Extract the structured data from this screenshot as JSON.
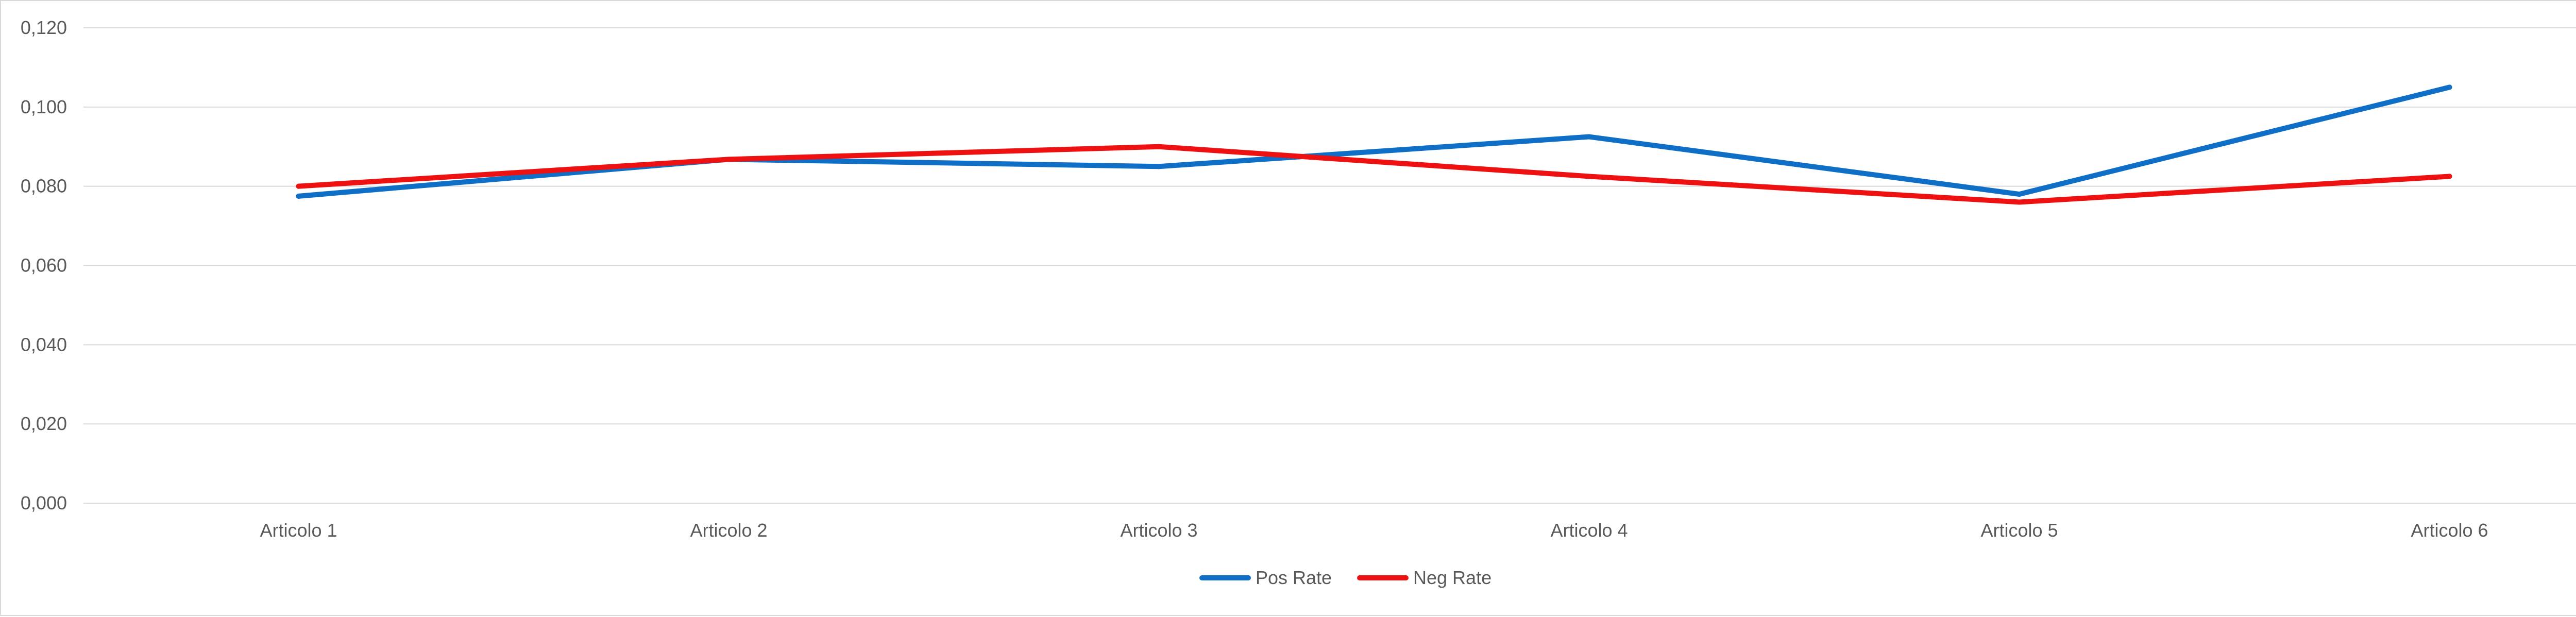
{
  "chart_data": {
    "type": "line",
    "title": "",
    "xlabel": "",
    "ylabel": "",
    "categories": [
      "Articolo 1",
      "Articolo 2",
      "Articolo 3",
      "Articolo 4",
      "Articolo 5",
      "Articolo 6"
    ],
    "series": [
      {
        "name": "Pos Rate",
        "color": "#0f6fc6",
        "values": [
          0.0775,
          0.0868,
          0.085,
          0.0925,
          0.078,
          0.105
        ]
      },
      {
        "name": "Neg Rate",
        "color": "#ee1111",
        "values": [
          0.08,
          0.0868,
          0.09,
          0.0825,
          0.076,
          0.0825
        ]
      }
    ],
    "ylim": [
      0,
      0.12
    ],
    "yticks": [
      "0,000",
      "0,020",
      "0,040",
      "0,060",
      "0,080",
      "0,100",
      "0,120"
    ],
    "grid": true,
    "legend": "bottom"
  }
}
